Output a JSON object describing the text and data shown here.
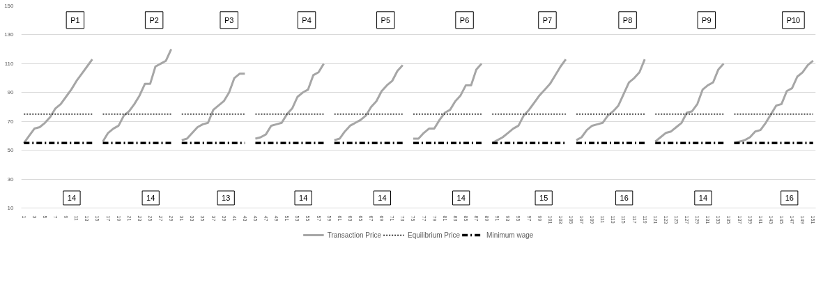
{
  "chart_data": {
    "type": "line",
    "categories": [
      "1",
      null,
      "3",
      null,
      "5",
      null,
      "7",
      null,
      "9",
      null,
      "11",
      null,
      "13",
      null,
      "15",
      null,
      "17",
      null,
      "19",
      null,
      "21",
      null,
      "23",
      null,
      "25",
      null,
      "27",
      null,
      "29",
      null,
      "31",
      null,
      "33",
      null,
      "35",
      null,
      "37",
      null,
      "39",
      null,
      "41",
      null,
      "43",
      null,
      "45",
      null,
      "47",
      null,
      "49",
      null,
      "51",
      null,
      "53",
      null,
      "55",
      null,
      "57",
      null,
      "59",
      null,
      "61",
      null,
      "63",
      null,
      "65",
      null,
      "67",
      null,
      "69",
      null,
      "71",
      null,
      "73",
      null,
      "75",
      null,
      "77",
      null,
      "79",
      null,
      "81",
      null,
      "83",
      null,
      "85",
      null,
      "87",
      null,
      "89",
      null,
      "91",
      null,
      "93",
      null,
      "95",
      null,
      "97",
      null,
      "99",
      null,
      "101",
      null,
      "103",
      null,
      "105",
      null,
      "107",
      null,
      "109",
      null,
      "111",
      null,
      "113",
      null,
      "115",
      null,
      "117",
      null,
      "119",
      null,
      "121",
      null,
      "123",
      null,
      "125",
      null,
      "127",
      null,
      "129",
      null,
      "131",
      null,
      "133",
      null,
      "135",
      null,
      "137",
      null,
      "139",
      null,
      "141",
      null,
      "143",
      null,
      "145",
      null,
      "147",
      null,
      "149",
      null,
      "151"
    ],
    "series": [
      {
        "name": "Transaction Price",
        "color": "#a6a6a6",
        "line_style": "solid",
        "values": [
          55,
          60,
          65,
          66,
          69,
          73,
          79,
          82,
          87,
          92,
          98,
          103,
          108,
          113,
          null,
          56,
          62,
          65,
          67,
          74,
          77,
          82,
          88,
          96,
          96,
          108,
          110,
          112,
          120,
          null,
          57,
          58,
          62,
          66,
          68,
          69,
          78,
          81,
          84,
          90,
          100,
          103,
          103,
          null,
          58,
          59,
          61,
          67,
          68,
          69,
          75,
          79,
          87,
          90,
          92,
          102,
          104,
          110,
          null,
          57,
          58,
          63,
          67,
          69,
          71,
          74,
          80,
          84,
          91,
          95,
          98,
          105,
          109,
          null,
          58,
          58,
          62,
          65,
          65,
          71,
          76,
          78,
          84,
          88,
          95,
          95,
          106,
          110,
          null,
          55,
          57,
          59,
          62,
          65,
          67,
          74,
          78,
          83,
          88,
          92,
          96,
          102,
          108,
          113,
          null,
          57,
          59,
          64,
          67,
          68,
          69,
          74,
          77,
          81,
          89,
          97,
          100,
          104,
          113,
          null,
          56,
          59,
          62,
          63,
          66,
          69,
          76,
          77,
          82,
          92,
          95,
          97,
          106,
          110,
          null,
          55,
          56,
          57,
          59,
          63,
          64,
          69,
          75,
          81,
          82,
          91,
          93,
          101,
          104,
          109,
          112
        ]
      },
      {
        "name": "Equilibrium Price",
        "color": "#000000",
        "line_style": "dotted",
        "values": [
          75,
          75,
          75,
          75,
          75,
          75,
          75,
          75,
          75,
          75,
          75,
          75,
          75,
          75,
          null,
          75,
          75,
          75,
          75,
          75,
          75,
          75,
          75,
          75,
          75,
          75,
          75,
          75,
          75,
          null,
          75,
          75,
          75,
          75,
          75,
          75,
          75,
          75,
          75,
          75,
          75,
          75,
          75,
          null,
          75,
          75,
          75,
          75,
          75,
          75,
          75,
          75,
          75,
          75,
          75,
          75,
          75,
          75,
          null,
          75,
          75,
          75,
          75,
          75,
          75,
          75,
          75,
          75,
          75,
          75,
          75,
          75,
          75,
          null,
          75,
          75,
          75,
          75,
          75,
          75,
          75,
          75,
          75,
          75,
          75,
          75,
          75,
          75,
          null,
          75,
          75,
          75,
          75,
          75,
          75,
          75,
          75,
          75,
          75,
          75,
          75,
          75,
          75,
          75,
          null,
          75,
          75,
          75,
          75,
          75,
          75,
          75,
          75,
          75,
          75,
          75,
          75,
          75,
          75,
          null,
          75,
          75,
          75,
          75,
          75,
          75,
          75,
          75,
          75,
          75,
          75,
          75,
          75,
          75,
          null,
          75,
          75,
          75,
          75,
          75,
          75,
          75,
          75,
          75,
          75,
          75,
          75,
          75,
          75,
          75,
          75
        ]
      },
      {
        "name": "Minimum wage",
        "color": "#000000",
        "line_style": "dashdot",
        "values": [
          55,
          55,
          55,
          55,
          55,
          55,
          55,
          55,
          55,
          55,
          55,
          55,
          55,
          55,
          null,
          55,
          55,
          55,
          55,
          55,
          55,
          55,
          55,
          55,
          55,
          55,
          55,
          55,
          55,
          null,
          55,
          55,
          55,
          55,
          55,
          55,
          55,
          55,
          55,
          55,
          55,
          55,
          55,
          null,
          55,
          55,
          55,
          55,
          55,
          55,
          55,
          55,
          55,
          55,
          55,
          55,
          55,
          55,
          null,
          55,
          55,
          55,
          55,
          55,
          55,
          55,
          55,
          55,
          55,
          55,
          55,
          55,
          55,
          null,
          55,
          55,
          55,
          55,
          55,
          55,
          55,
          55,
          55,
          55,
          55,
          55,
          55,
          55,
          null,
          55,
          55,
          55,
          55,
          55,
          55,
          55,
          55,
          55,
          55,
          55,
          55,
          55,
          55,
          55,
          null,
          55,
          55,
          55,
          55,
          55,
          55,
          55,
          55,
          55,
          55,
          55,
          55,
          55,
          55,
          null,
          55,
          55,
          55,
          55,
          55,
          55,
          55,
          55,
          55,
          55,
          55,
          55,
          55,
          55,
          null,
          55,
          55,
          55,
          55,
          55,
          55,
          55,
          55,
          55,
          55,
          55,
          55,
          55,
          55,
          55,
          55
        ]
      }
    ],
    "ylim": [
      10,
      150
    ],
    "yticks": [
      10,
      30,
      50,
      70,
      90,
      110,
      130,
      150
    ],
    "grid": "y",
    "legend": "bottom",
    "annotations": [
      "P1",
      "14",
      "P2",
      "14",
      "P3",
      "13",
      "P4",
      "14",
      "P5",
      "14",
      "P6",
      "14",
      "P7",
      "15",
      "P8",
      "16",
      "P9",
      "14",
      "P10",
      "16"
    ]
  }
}
